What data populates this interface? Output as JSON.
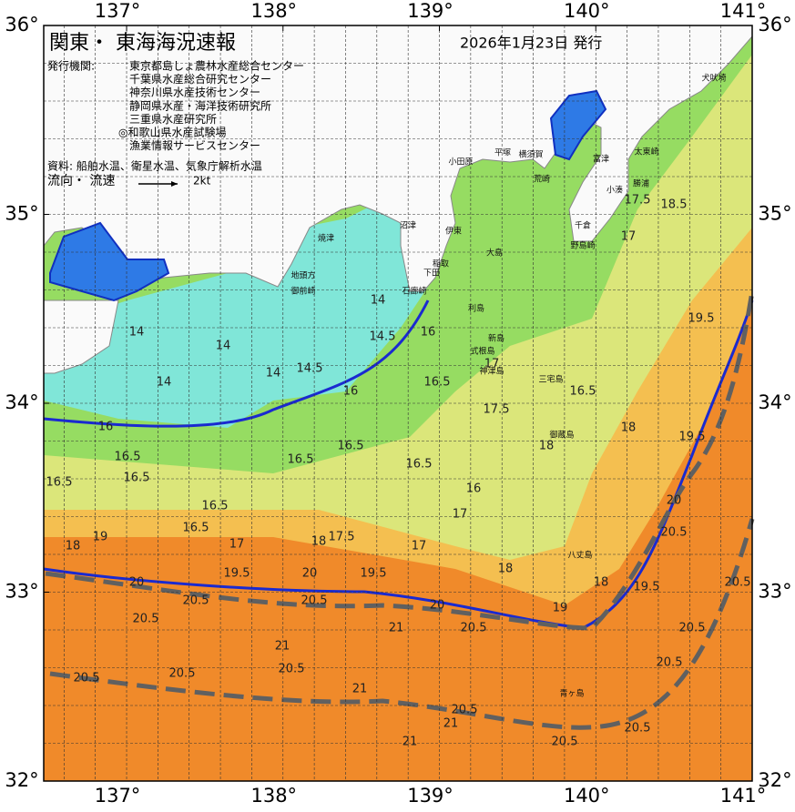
{
  "header": {
    "title": "関東・ 東海海況速報",
    "date": "2026年1月23日 発行",
    "issuer_label": "発行機関:",
    "issuers": [
      "東京都島しょ農林水産総合センター",
      "千葉県水産総合研究センター",
      "神奈川県水産技術センター",
      "静岡県水産・海洋技術研究所",
      "三重県水産研究所",
      "◎和歌山県水産試験場",
      "漁業情報サービスセンター"
    ],
    "sources": "資料: 船舶水温、衛星水温、気象庁解析水温",
    "flow_label": "流向・ 流速",
    "scale_label": "2kt"
  },
  "axes": {
    "xlim": [
      136.47,
      141
    ],
    "ylim": [
      32,
      36
    ],
    "xticks": [
      {
        "value": 137,
        "label": "137°"
      },
      {
        "value": 138,
        "label": "138°"
      },
      {
        "value": 139,
        "label": "139°"
      },
      {
        "value": 140,
        "label": "140°"
      },
      {
        "value": 141,
        "label": "141°"
      }
    ],
    "yticks": [
      {
        "value": 32,
        "label": "32°"
      },
      {
        "value": 33,
        "label": "33°"
      },
      {
        "value": 34,
        "label": "34°"
      },
      {
        "value": 35,
        "label": "35°"
      },
      {
        "value": 36,
        "label": "36°"
      }
    ]
  },
  "place_names": [
    "犬吠埼",
    "太東崎",
    "勝浦",
    "小湊",
    "千倉",
    "野島崎",
    "富津",
    "横須賀",
    "平塚",
    "小田原",
    "荒崎",
    "伊東",
    "稲取",
    "下田",
    "石廊崎",
    "沼津",
    "焼津",
    "御前崎",
    "地頭方",
    "大島",
    "利島",
    "新島",
    "式根島",
    "神津島",
    "三宅島",
    "御蔵島",
    "八丈島",
    "青ヶ島"
  ],
  "contour_labels": [
    16,
    16.5,
    16.5,
    16.5,
    16.5,
    16.5,
    14,
    14,
    14,
    14.5,
    16,
    16.5,
    16.5,
    16.5,
    16.5,
    17.5,
    18,
    18,
    16.5,
    17,
    17.5,
    18.5,
    19.5,
    19.5,
    20,
    20.5,
    18,
    19.5,
    19,
    20,
    20.5,
    20.5,
    20.5,
    20.5,
    20.5,
    20.5,
    20.5,
    20.5,
    20.5,
    20.5,
    20.5,
    20.5,
    20.5,
    21,
    21,
    21,
    21,
    20,
    20,
    19.5,
    19.5,
    18,
    17,
    17,
    16,
    17,
    18,
    18,
    19,
    21,
    17.5,
    14,
    14,
    14.5,
    16,
    17
  ]
}
